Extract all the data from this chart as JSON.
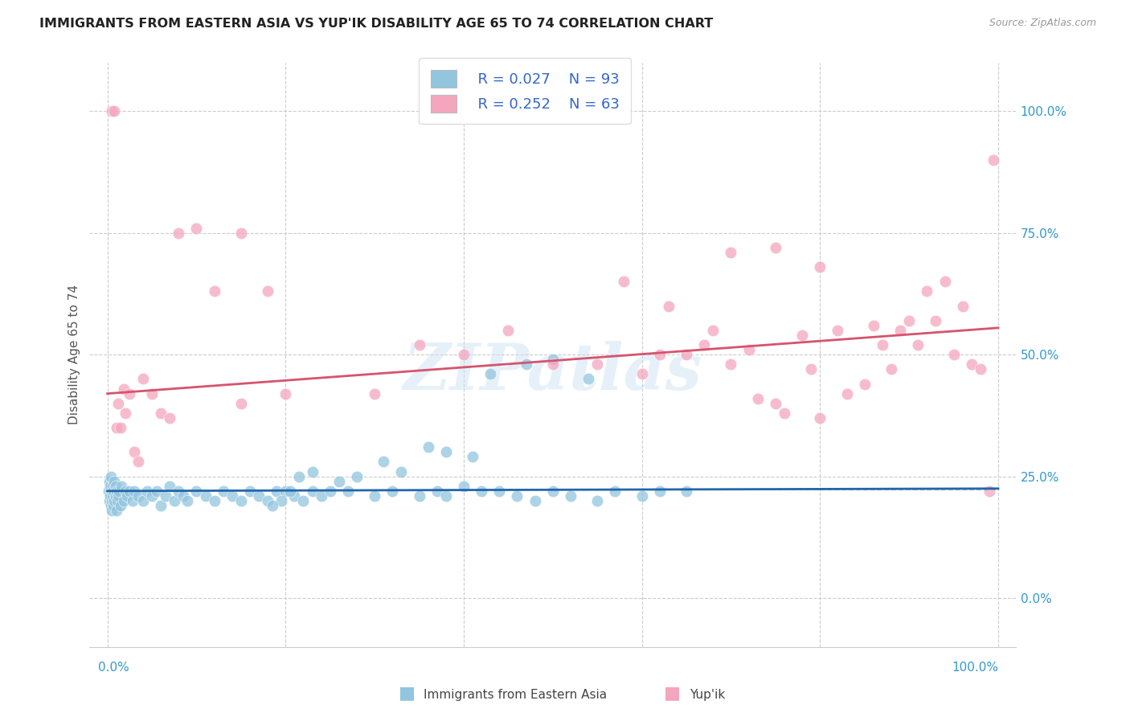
{
  "title": "IMMIGRANTS FROM EASTERN ASIA VS YUP'IK DISABILITY AGE 65 TO 74 CORRELATION CHART",
  "source": "Source: ZipAtlas.com",
  "ylabel": "Disability Age 65 to 74",
  "legend1_r": "R = 0.027",
  "legend1_n": "N = 93",
  "legend2_r": "R = 0.252",
  "legend2_n": "N = 63",
  "blue_color": "#92c5de",
  "pink_color": "#f4a6be",
  "blue_line_color": "#2166ac",
  "pink_line_color": "#d6546e",
  "dashed_line_color": "#aaaaaa",
  "grid_color": "#cccccc",
  "blue_trend": [
    0,
    100,
    22.0,
    22.5
  ],
  "pink_trend": [
    0,
    100,
    42.0,
    55.5
  ],
  "dashed_y": 22.3,
  "dashed_xmin": 45,
  "ylim": [
    -10,
    110
  ],
  "xlim": [
    -2,
    102
  ],
  "blue_x": [
    0.1,
    0.2,
    0.2,
    0.3,
    0.3,
    0.4,
    0.4,
    0.5,
    0.5,
    0.5,
    0.6,
    0.6,
    0.7,
    0.7,
    0.8,
    0.8,
    0.9,
    0.9,
    1.0,
    1.0,
    1.1,
    1.2,
    1.3,
    1.5,
    1.6,
    1.8,
    2.0,
    2.2,
    2.5,
    2.8,
    3.0,
    3.5,
    4.0,
    4.5,
    5.0,
    5.5,
    6.0,
    6.5,
    7.0,
    7.5,
    8.0,
    8.5,
    9.0,
    10.0,
    11.0,
    12.0,
    13.0,
    14.0,
    15.0,
    16.0,
    17.0,
    18.0,
    19.0,
    20.0,
    21.0,
    22.0,
    23.0,
    24.0,
    25.0,
    27.0,
    30.0,
    32.0,
    35.0,
    37.0,
    38.0,
    40.0,
    42.0,
    44.0,
    46.0,
    48.0,
    50.0,
    52.0,
    55.0,
    57.0,
    60.0,
    62.0,
    65.0,
    50.0,
    54.0,
    47.0,
    43.0,
    41.0,
    38.0,
    36.0,
    33.0,
    31.0,
    28.0,
    26.0,
    23.0,
    21.5,
    20.5,
    19.5,
    18.5
  ],
  "blue_y": [
    22,
    20,
    24,
    21,
    23,
    19,
    25,
    22,
    20,
    18,
    23,
    21,
    19,
    22,
    20,
    24,
    21,
    23,
    18,
    22,
    20,
    21,
    22,
    19,
    23,
    20,
    22,
    21,
    22,
    20,
    22,
    21,
    20,
    22,
    21,
    22,
    19,
    21,
    23,
    20,
    22,
    21,
    20,
    22,
    21,
    20,
    22,
    21,
    20,
    22,
    21,
    20,
    22,
    22,
    21,
    20,
    22,
    21,
    22,
    22,
    21,
    22,
    21,
    22,
    21,
    23,
    22,
    22,
    21,
    20,
    22,
    21,
    20,
    22,
    21,
    22,
    22,
    49,
    45,
    48,
    46,
    29,
    30,
    31,
    26,
    28,
    25,
    24,
    26,
    25,
    22,
    20,
    19
  ],
  "pink_x": [
    0.5,
    0.8,
    1.0,
    1.2,
    1.5,
    1.8,
    2.0,
    2.5,
    3.0,
    3.5,
    4.0,
    5.0,
    6.0,
    7.0,
    8.0,
    10.0,
    12.0,
    15.0,
    18.0,
    50.0,
    55.0,
    60.0,
    62.0,
    65.0,
    67.0,
    68.0,
    70.0,
    72.0,
    73.0,
    75.0,
    76.0,
    78.0,
    79.0,
    80.0,
    82.0,
    83.0,
    85.0,
    86.0,
    87.0,
    88.0,
    89.0,
    90.0,
    91.0,
    92.0,
    93.0,
    94.0,
    95.0,
    96.0,
    97.0,
    98.0,
    99.0,
    99.5,
    70.0,
    75.0,
    80.0,
    63.0,
    58.0,
    45.0,
    40.0,
    35.0,
    30.0,
    20.0,
    15.0
  ],
  "pink_y": [
    100,
    100,
    35,
    40,
    35,
    43,
    38,
    42,
    30,
    28,
    45,
    42,
    38,
    37,
    75,
    76,
    63,
    75,
    63,
    48,
    48,
    46,
    50,
    50,
    52,
    55,
    48,
    51,
    41,
    40,
    38,
    54,
    47,
    37,
    55,
    42,
    44,
    56,
    52,
    47,
    55,
    57,
    52,
    63,
    57,
    65,
    50,
    60,
    48,
    47,
    22,
    90,
    71,
    72,
    68,
    60,
    65,
    55,
    50,
    52,
    42,
    42,
    40
  ],
  "ytick_values": [
    0,
    25,
    50,
    75,
    100
  ],
  "ytick_labels": [
    "0.0%",
    "25.0%",
    "50.0%",
    "75.0%",
    "100.0%"
  ]
}
